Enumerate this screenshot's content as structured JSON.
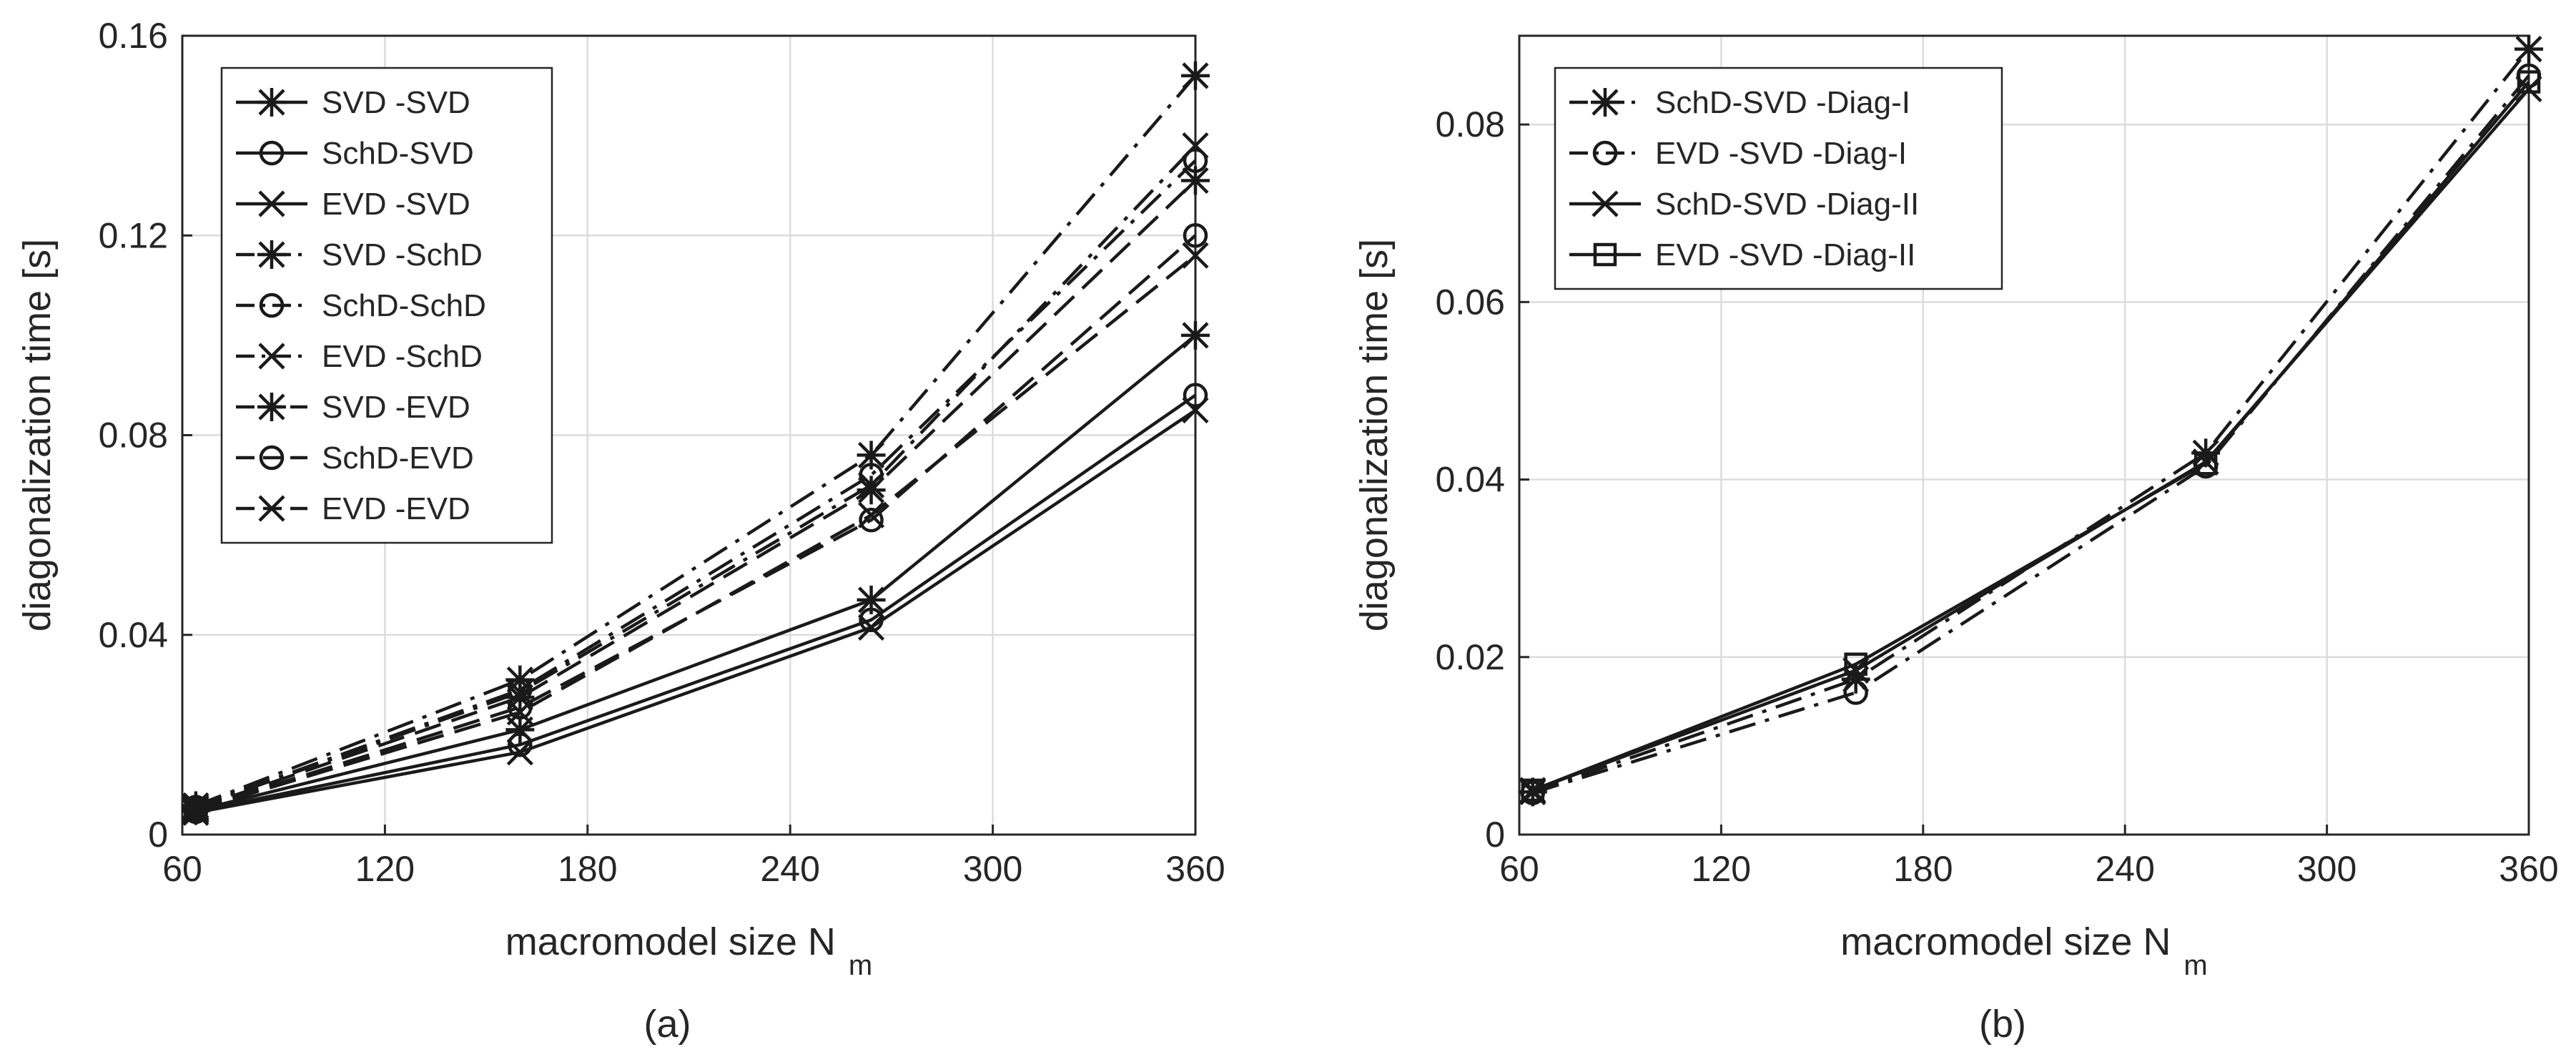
{
  "chart_data": [
    {
      "type": "line",
      "panel_label": "(a)",
      "xlabel": "macromodel size N",
      "xlabel_sub": "m",
      "ylabel": "diagonalization time [s]",
      "xlim": [
        60,
        360
      ],
      "ylim": [
        0,
        0.16
      ],
      "xticks": [
        60,
        120,
        180,
        240,
        300,
        360
      ],
      "yticks": [
        0,
        0.04,
        0.08,
        0.12,
        0.16
      ],
      "xtick_labels": [
        "60",
        "120",
        "180",
        "240",
        "300",
        "360"
      ],
      "ytick_labels": [
        "0",
        "0.04",
        "0.08",
        "0.12",
        "0.16"
      ],
      "grid": true,
      "legend_position": "top-left",
      "x": [
        64,
        160,
        264,
        360
      ],
      "series": [
        {
          "name": "SVD -SVD",
          "line": "solid",
          "marker": "asterisk",
          "values": [
            0.0048,
            0.021,
            0.047,
            0.1
          ]
        },
        {
          "name": "SchD-SVD",
          "line": "solid",
          "marker": "circle",
          "values": [
            0.0046,
            0.018,
            0.043,
            0.088
          ]
        },
        {
          "name": "EVD -SVD",
          "line": "solid",
          "marker": "x",
          "values": [
            0.0044,
            0.0165,
            0.0415,
            0.085
          ]
        },
        {
          "name": "SVD -SchD",
          "line": "dashdot",
          "marker": "asterisk",
          "values": [
            0.0058,
            0.031,
            0.076,
            0.152
          ]
        },
        {
          "name": "SchD-SchD",
          "line": "dashdot",
          "marker": "circle",
          "values": [
            0.0055,
            0.029,
            0.072,
            0.135
          ]
        },
        {
          "name": "EVD -SchD",
          "line": "dashdot",
          "marker": "x",
          "values": [
            0.0054,
            0.0285,
            0.07,
            0.138
          ]
        },
        {
          "name": "SVD -EVD",
          "line": "dashed",
          "marker": "asterisk",
          "values": [
            0.0052,
            0.0275,
            0.069,
            0.131
          ]
        },
        {
          "name": "SchD-EVD",
          "line": "dashed",
          "marker": "circle",
          "values": [
            0.005,
            0.0255,
            0.063,
            0.12
          ]
        },
        {
          "name": "EVD -EVD",
          "line": "dashed",
          "marker": "x",
          "values": [
            0.0049,
            0.0245,
            0.064,
            0.116
          ]
        }
      ]
    },
    {
      "type": "line",
      "panel_label": "(b)",
      "xlabel": "macromodel size N",
      "xlabel_sub": "m",
      "ylabel": "diagonalization time [s]",
      "xlim": [
        60,
        360
      ],
      "ylim": [
        0,
        0.09
      ],
      "xticks": [
        60,
        120,
        180,
        240,
        300,
        360
      ],
      "yticks": [
        0,
        0.02,
        0.04,
        0.06,
        0.08
      ],
      "xtick_labels": [
        "60",
        "120",
        "180",
        "240",
        "300",
        "360"
      ],
      "ytick_labels": [
        "0",
        "0.02",
        "0.04",
        "0.06",
        "0.08"
      ],
      "grid": true,
      "legend_position": "top-left",
      "x": [
        64,
        160,
        264,
        360
      ],
      "series": [
        {
          "name": "SchD-SVD -Diag-I",
          "line": "dashdot",
          "marker": "asterisk",
          "values": [
            0.0048,
            0.0175,
            0.043,
            0.0885
          ]
        },
        {
          "name": "EVD -SVD -Diag-I",
          "line": "dashdot",
          "marker": "circle",
          "values": [
            0.0047,
            0.016,
            0.0415,
            0.0855
          ]
        },
        {
          "name": "SchD-SVD -Diag-II",
          "line": "solid",
          "marker": "x",
          "values": [
            0.005,
            0.0185,
            0.042,
            0.084
          ]
        },
        {
          "name": "EVD -SVD -Diag-II",
          "line": "solid",
          "marker": "square",
          "values": [
            0.005,
            0.0192,
            0.0418,
            0.0848
          ]
        }
      ]
    }
  ]
}
